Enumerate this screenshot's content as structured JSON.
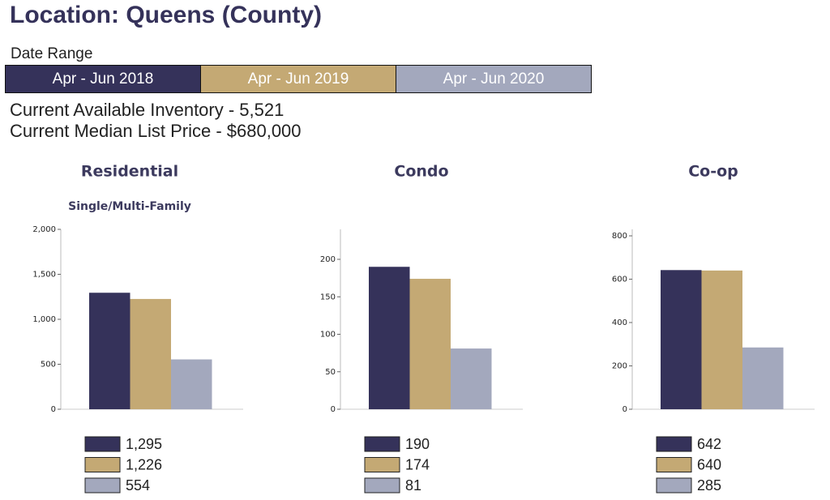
{
  "header": {
    "title": "Location: Queens (County)"
  },
  "date_range": {
    "label": "Date Range",
    "options": [
      {
        "label": "Apr - Jun 2018",
        "color": "#35325a"
      },
      {
        "label": "Apr - Jun 2019",
        "color": "#c4a974"
      },
      {
        "label": "Apr - Jun 2020",
        "color": "#a3a8bd"
      }
    ]
  },
  "summary": [
    "Current Available Inventory - 5,521",
    "Current Median List Price - $680,000"
  ],
  "chart_data": [
    {
      "type": "bar",
      "title": "Residential",
      "subtitle": "Single/Multi-Family",
      "ylim": [
        0,
        2000
      ],
      "yticks": [
        0,
        500,
        {
          "value": 1000,
          "label": "1,000"
        },
        {
          "value": 1500,
          "label": "1,500"
        },
        {
          "value": 2000,
          "label": "2,000"
        }
      ],
      "series": [
        {
          "color": "#35325a",
          "values": [
            1295
          ],
          "value_labels": [
            "1,295"
          ]
        },
        {
          "color": "#c4a974",
          "values": [
            1226
          ],
          "value_labels": [
            "1,226"
          ]
        },
        {
          "color": "#a3a8bd",
          "values": [
            554
          ]
        }
      ]
    },
    {
      "type": "bar",
      "title": "Condo",
      "ylim": [
        0,
        240
      ],
      "yticks": [
        0,
        50,
        100,
        150,
        200
      ],
      "series": [
        {
          "color": "#35325a",
          "values": [
            190
          ]
        },
        {
          "color": "#c4a974",
          "values": [
            174
          ]
        },
        {
          "color": "#a3a8bd",
          "values": [
            81
          ]
        }
      ]
    },
    {
      "type": "bar",
      "title": "Co-op",
      "ylim": [
        0,
        830
      ],
      "yticks": [
        0,
        200,
        400,
        600,
        800
      ],
      "series": [
        {
          "color": "#35325a",
          "values": [
            642
          ]
        },
        {
          "color": "#c4a974",
          "values": [
            640
          ]
        },
        {
          "color": "#a3a8bd",
          "values": [
            285
          ]
        }
      ]
    }
  ]
}
